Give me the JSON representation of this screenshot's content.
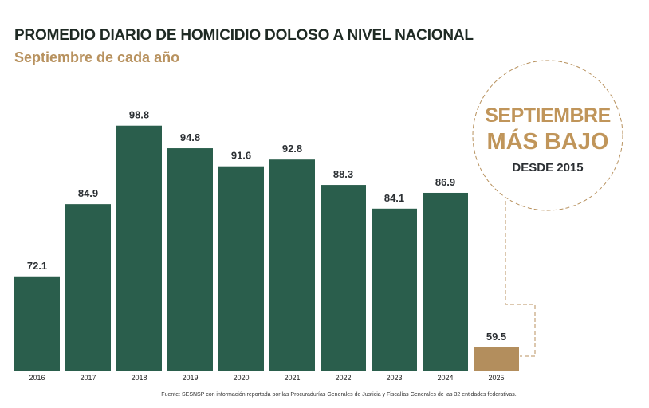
{
  "header": {
    "title": "PROMEDIO DIARIO DE HOMICIDIO DOLOSO A NIVEL NACIONAL",
    "subtitle": "Septiembre de cada año"
  },
  "badge": {
    "line1": "SEPTIEMBRE",
    "line2": "MÁS BAJO",
    "line3": "DESDE 2015"
  },
  "footer": "Fuente: SESNSP con información reportada por las Procuradurías Generales de Justicia y Fiscalías Generales de las 32 entidades federativas.",
  "colors": {
    "bar": "#2a5e4c",
    "highlight": "#b38e5d",
    "accent": "#c0955a"
  },
  "chart_data": {
    "type": "bar",
    "title": "PROMEDIO DIARIO DE HOMICIDIO DOLOSO A NIVEL NACIONAL",
    "subtitle": "Septiembre de cada año",
    "categories": [
      "2016",
      "2017",
      "2018",
      "2019",
      "2020",
      "2021",
      "2022",
      "2023",
      "2024",
      "2025"
    ],
    "values": [
      72.1,
      84.9,
      98.8,
      94.8,
      91.6,
      92.8,
      88.3,
      84.1,
      86.9,
      59.5
    ],
    "labels": [
      "72.1",
      "84.9",
      "98.8",
      "94.8",
      "91.6",
      "92.8",
      "88.3",
      "84.1",
      "86.9",
      "59.5"
    ],
    "highlight_index": 9,
    "xlabel": "",
    "ylabel": "",
    "ylim": [
      55.4,
      110
    ],
    "grid": false,
    "legend": "none"
  }
}
